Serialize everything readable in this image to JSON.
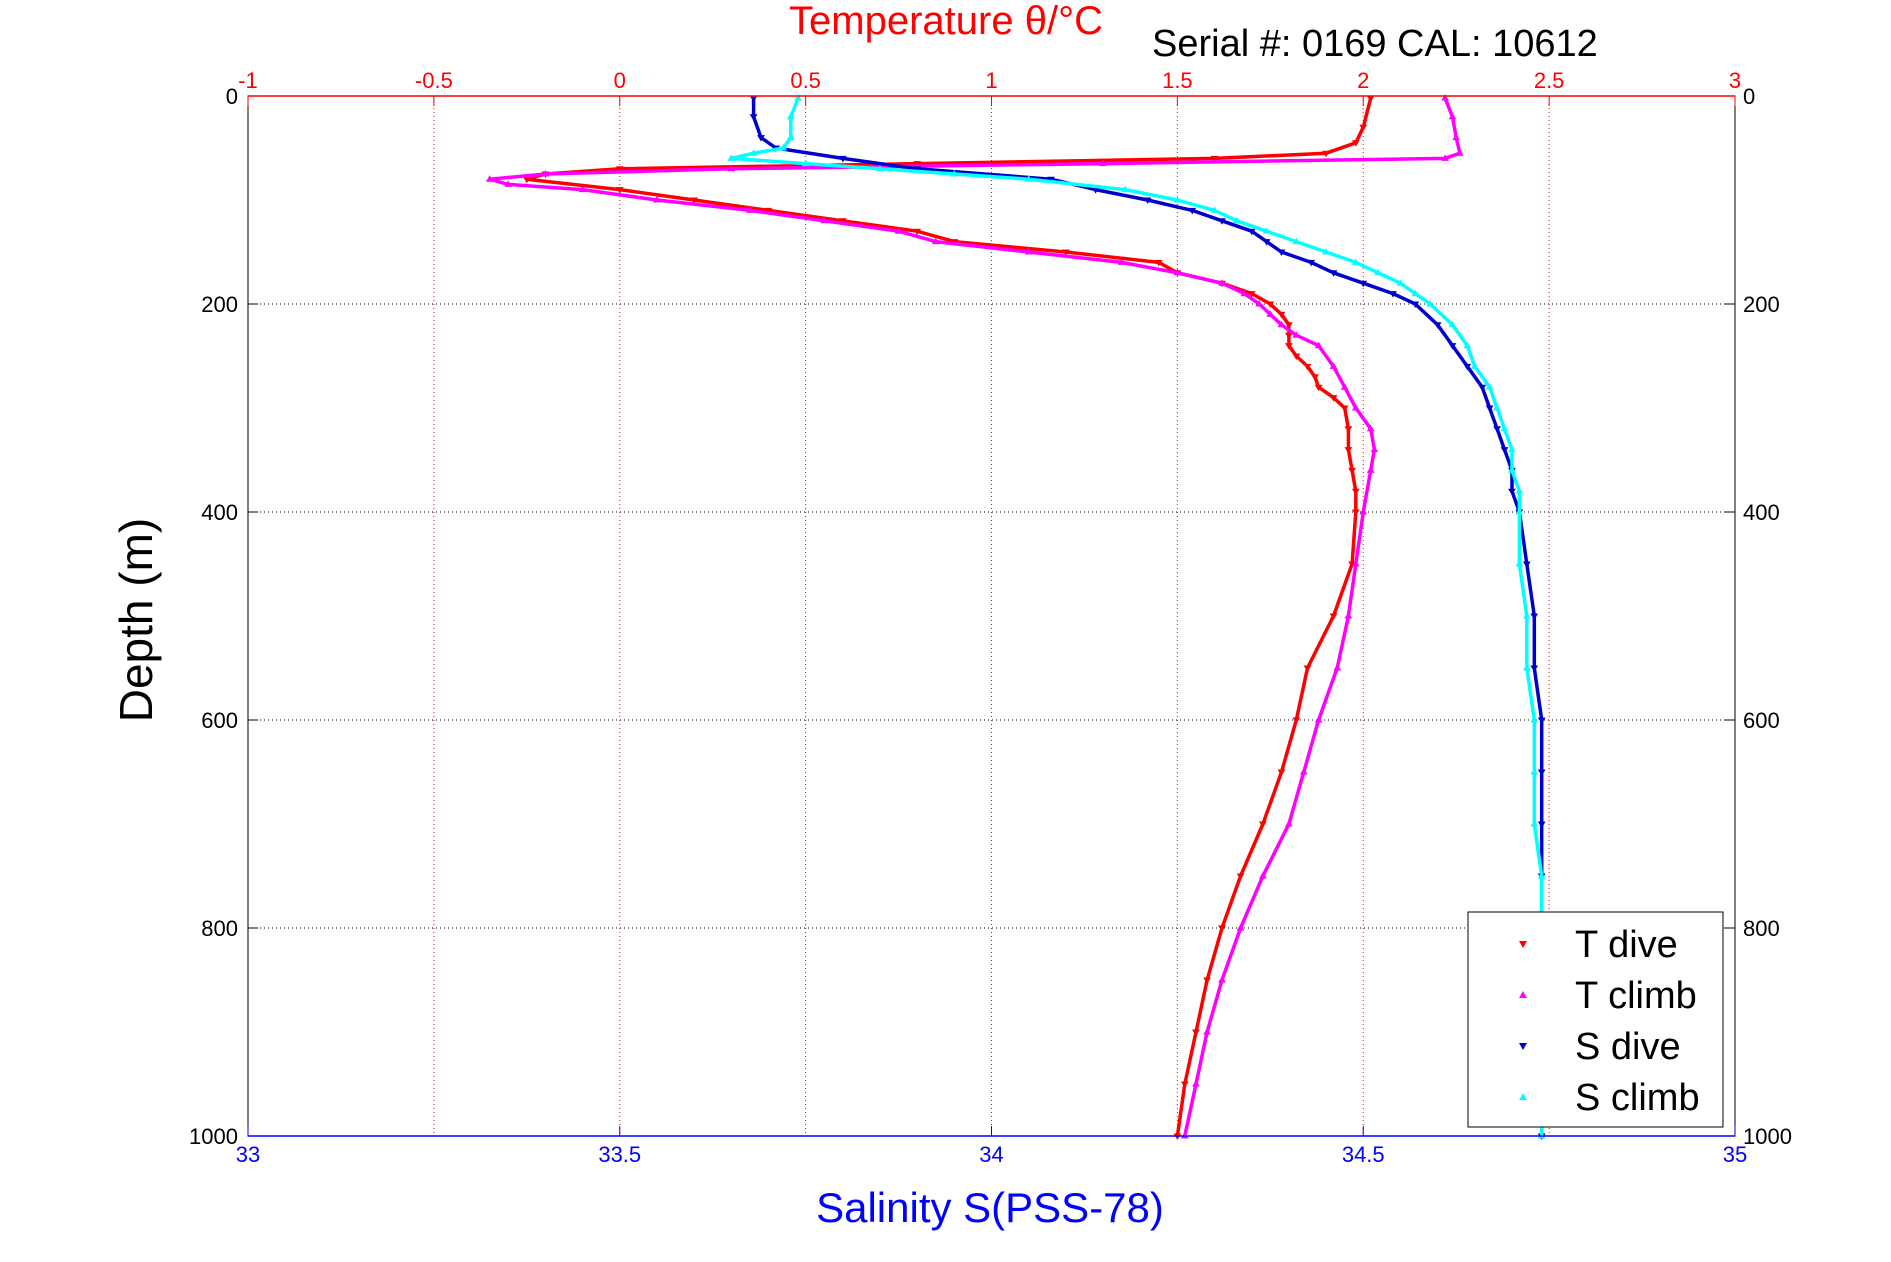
{
  "chart_data": {
    "type": "scatter",
    "title": "Temperature θ/°C",
    "subtitle": "Serial #: 0169 CAL: 10612",
    "ylabel": "Depth (m)",
    "xlabel_bottom": "Salinity S(PSS-78)",
    "xlabel_top": "Temperature θ/°C",
    "ylim": [
      0,
      1000
    ],
    "y_reversed": true,
    "xlim_bottom": [
      33,
      35
    ],
    "xlim_top": [
      -1,
      3
    ],
    "yticks": [
      "0",
      "200",
      "400",
      "600",
      "800",
      "1000"
    ],
    "xticks_bottom": [
      "33",
      "33.5",
      "34",
      "34.5",
      "35"
    ],
    "xticks_top": [
      "-1",
      "-0.5",
      "0",
      "0.5",
      "1",
      "1.5",
      "2",
      "2.5",
      "3"
    ],
    "grid": true,
    "legend_position": "bottom-right",
    "colors": {
      "temperature_axis": "#ff0000",
      "salinity_axis": "#0000ff",
      "t_dive": "#ff0000",
      "t_climb": "#ff00ff",
      "s_dive": "#0000cc",
      "s_climb": "#00ffff"
    },
    "series": [
      {
        "name": "T dive",
        "axis": "temperature",
        "depth": [
          2,
          30,
          45,
          55,
          60,
          65,
          70,
          75,
          80,
          90,
          100,
          110,
          120,
          130,
          140,
          150,
          160,
          170,
          180,
          190,
          200,
          210,
          220,
          230,
          240,
          250,
          260,
          270,
          280,
          290,
          300,
          320,
          340,
          360,
          380,
          400,
          450,
          500,
          550,
          600,
          650,
          700,
          750,
          800,
          850,
          900,
          950,
          1000
        ],
        "values": [
          2.02,
          2.0,
          1.98,
          1.9,
          1.6,
          0.8,
          0.0,
          -0.2,
          -0.25,
          0.0,
          0.2,
          0.4,
          0.6,
          0.8,
          0.9,
          1.2,
          1.45,
          1.5,
          1.62,
          1.7,
          1.75,
          1.78,
          1.8,
          1.8,
          1.8,
          1.82,
          1.85,
          1.87,
          1.88,
          1.92,
          1.95,
          1.96,
          1.96,
          1.97,
          1.98,
          1.98,
          1.97,
          1.92,
          1.85,
          1.82,
          1.78,
          1.73,
          1.67,
          1.62,
          1.58,
          1.55,
          1.52,
          1.5
        ]
      },
      {
        "name": "T climb",
        "axis": "temperature",
        "depth": [
          2,
          20,
          40,
          55,
          60,
          65,
          70,
          75,
          80,
          85,
          90,
          100,
          110,
          120,
          130,
          140,
          150,
          160,
          170,
          180,
          190,
          200,
          210,
          220,
          230,
          240,
          260,
          280,
          300,
          320,
          340,
          360,
          400,
          450,
          500,
          550,
          600,
          650,
          700,
          750,
          800,
          850,
          900,
          950,
          1000
        ],
        "values": [
          2.22,
          2.24,
          2.25,
          2.26,
          2.22,
          1.3,
          0.3,
          -0.2,
          -0.35,
          -0.3,
          -0.1,
          0.1,
          0.35,
          0.55,
          0.75,
          0.85,
          1.1,
          1.35,
          1.5,
          1.62,
          1.68,
          1.72,
          1.75,
          1.78,
          1.82,
          1.88,
          1.92,
          1.95,
          1.98,
          2.02,
          2.03,
          2.02,
          2.0,
          1.98,
          1.96,
          1.93,
          1.88,
          1.84,
          1.8,
          1.73,
          1.67,
          1.62,
          1.58,
          1.55,
          1.52
        ]
      },
      {
        "name": "S dive",
        "axis": "salinity",
        "depth": [
          2,
          20,
          40,
          50,
          60,
          70,
          80,
          90,
          100,
          110,
          120,
          130,
          140,
          150,
          160,
          170,
          180,
          190,
          200,
          220,
          240,
          260,
          280,
          300,
          320,
          340,
          360,
          380,
          400,
          450,
          500,
          550,
          600,
          650,
          700,
          750,
          800,
          850,
          900,
          950,
          1000
        ],
        "values": [
          33.68,
          33.68,
          33.69,
          33.71,
          33.8,
          33.9,
          34.08,
          34.14,
          34.21,
          34.27,
          34.31,
          34.35,
          34.37,
          34.39,
          34.43,
          34.46,
          34.5,
          34.54,
          34.57,
          34.6,
          34.62,
          34.64,
          34.66,
          34.67,
          34.68,
          34.69,
          34.7,
          34.7,
          34.71,
          34.72,
          34.73,
          34.73,
          34.74,
          34.74,
          34.74,
          34.74,
          34.74,
          34.74,
          34.74,
          34.74,
          34.74
        ]
      },
      {
        "name": "S climb",
        "axis": "salinity",
        "depth": [
          2,
          20,
          40,
          50,
          55,
          60,
          65,
          70,
          75,
          80,
          90,
          100,
          110,
          120,
          130,
          140,
          150,
          160,
          170,
          180,
          190,
          200,
          220,
          240,
          260,
          280,
          300,
          320,
          340,
          360,
          380,
          400,
          450,
          500,
          550,
          600,
          650,
          700,
          750,
          800,
          850,
          900,
          950,
          1000
        ],
        "values": [
          33.74,
          33.73,
          33.73,
          33.72,
          33.68,
          33.65,
          33.75,
          33.85,
          33.95,
          34.05,
          34.18,
          34.25,
          34.3,
          34.33,
          34.37,
          34.41,
          34.45,
          34.49,
          34.52,
          34.55,
          34.57,
          34.59,
          34.62,
          34.64,
          34.65,
          34.67,
          34.68,
          34.69,
          34.7,
          34.7,
          34.71,
          34.71,
          34.71,
          34.72,
          34.72,
          34.73,
          34.73,
          34.73,
          34.74,
          34.74,
          34.74,
          34.74,
          34.74,
          34.74
        ]
      }
    ]
  }
}
